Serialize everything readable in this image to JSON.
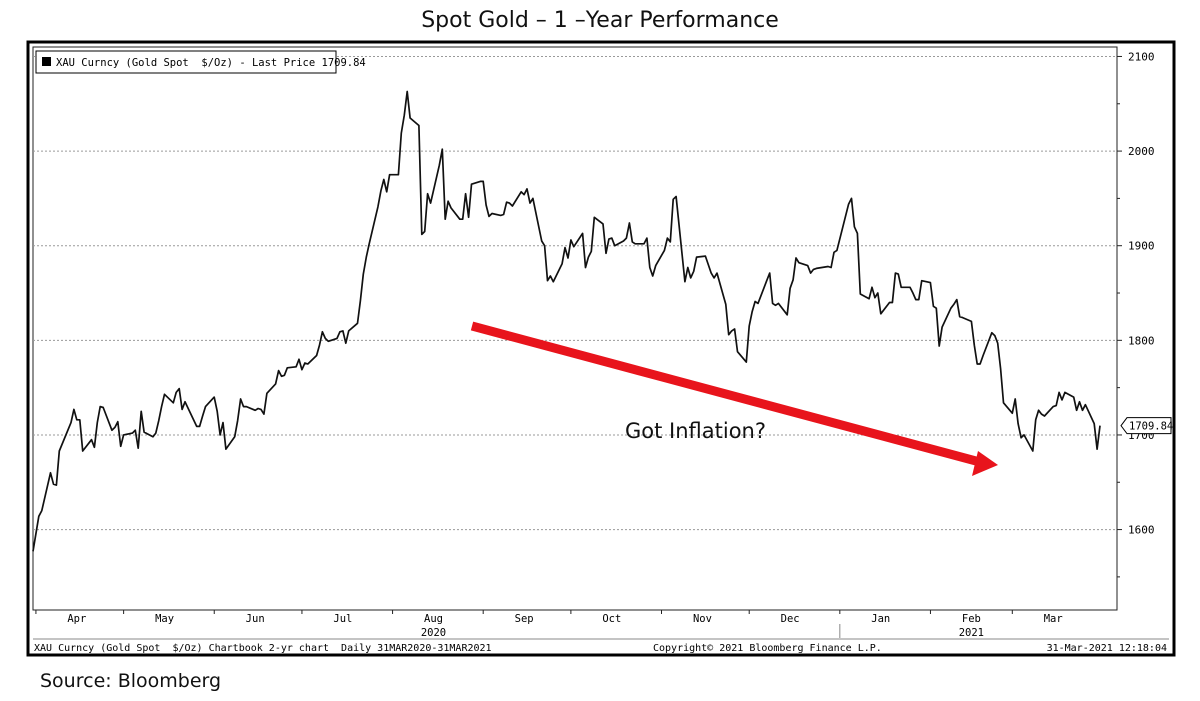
{
  "title": "Spot Gold – 1 –Year Performance",
  "source": "Source: Bloomberg",
  "footer": {
    "left": "XAU Curncy (Gold Spot  $/Oz) Chartbook 2-yr chart  Daily 31MAR2020-31MAR2021",
    "center": "Copyright© 2021 Bloomberg Finance L.P.",
    "right": "31-Mar-2021 12:18:04"
  },
  "annotation": {
    "text": "Got Inflation?",
    "arrow_color": "#e8141c"
  },
  "chart_data": {
    "type": "line",
    "legend": {
      "label": "XAU Curncy (Gold Spot  $/Oz) - Last Price 1709.84",
      "position": "top-left"
    },
    "last_price_label": "1709.84",
    "last_price": 1709.84,
    "ylim": [
      1515,
      2110
    ],
    "y_ticks": [
      1600,
      1700,
      1800,
      1900,
      2000,
      2100
    ],
    "y_axis_side": "right",
    "grid": "horizontal dotted",
    "x_range": [
      "2020-03-31",
      "2021-03-31"
    ],
    "x_ticks": [
      {
        "date": "2020-04-15",
        "label": "Apr"
      },
      {
        "date": "2020-05-15",
        "label": "May"
      },
      {
        "date": "2020-06-15",
        "label": "Jun"
      },
      {
        "date": "2020-07-15",
        "label": "Jul"
      },
      {
        "date": "2020-08-15",
        "label": "Aug",
        "year": "2020"
      },
      {
        "date": "2020-09-15",
        "label": "Sep"
      },
      {
        "date": "2020-10-15",
        "label": "Oct"
      },
      {
        "date": "2020-11-15",
        "label": "Nov"
      },
      {
        "date": "2020-12-15",
        "label": "Dec"
      },
      {
        "date": "2021-01-15",
        "label": "Jan"
      },
      {
        "date": "2021-02-15",
        "label": "Feb",
        "year": "2021"
      },
      {
        "date": "2021-03-15",
        "label": "Mar"
      }
    ],
    "line_color": "#111111",
    "series": [
      {
        "name": "XAU Curncy (Gold Spot  $/Oz) - Last Price",
        "points": [
          [
            "2020-03-31",
            1577
          ],
          [
            "2020-04-02",
            1614
          ],
          [
            "2020-04-03",
            1620
          ],
          [
            "2020-04-06",
            1660
          ],
          [
            "2020-04-07",
            1648
          ],
          [
            "2020-04-08",
            1647
          ],
          [
            "2020-04-09",
            1683
          ],
          [
            "2020-04-13",
            1713
          ],
          [
            "2020-04-14",
            1727
          ],
          [
            "2020-04-15",
            1716
          ],
          [
            "2020-04-16",
            1716
          ],
          [
            "2020-04-17",
            1683
          ],
          [
            "2020-04-20",
            1695
          ],
          [
            "2020-04-21",
            1687
          ],
          [
            "2020-04-22",
            1713
          ],
          [
            "2020-04-23",
            1730
          ],
          [
            "2020-04-24",
            1729
          ],
          [
            "2020-04-27",
            1705
          ],
          [
            "2020-04-28",
            1708
          ],
          [
            "2020-04-29",
            1714
          ],
          [
            "2020-04-30",
            1688
          ],
          [
            "2020-05-01",
            1700
          ],
          [
            "2020-05-04",
            1702
          ],
          [
            "2020-05-05",
            1705
          ],
          [
            "2020-05-06",
            1686
          ],
          [
            "2020-05-07",
            1725
          ],
          [
            "2020-05-08",
            1703
          ],
          [
            "2020-05-11",
            1698
          ],
          [
            "2020-05-12",
            1702
          ],
          [
            "2020-05-13",
            1715
          ],
          [
            "2020-05-14",
            1730
          ],
          [
            "2020-05-15",
            1743
          ],
          [
            "2020-05-18",
            1734
          ],
          [
            "2020-05-19",
            1745
          ],
          [
            "2020-05-20",
            1749
          ],
          [
            "2020-05-21",
            1727
          ],
          [
            "2020-05-22",
            1735
          ],
          [
            "2020-05-26",
            1709
          ],
          [
            "2020-05-27",
            1709
          ],
          [
            "2020-05-28",
            1720
          ],
          [
            "2020-05-29",
            1730
          ],
          [
            "2020-06-01",
            1740
          ],
          [
            "2020-06-02",
            1725
          ],
          [
            "2020-06-03",
            1700
          ],
          [
            "2020-06-04",
            1713
          ],
          [
            "2020-06-05",
            1685
          ],
          [
            "2020-06-08",
            1698
          ],
          [
            "2020-06-09",
            1715
          ],
          [
            "2020-06-10",
            1738
          ],
          [
            "2020-06-11",
            1730
          ],
          [
            "2020-06-12",
            1730
          ],
          [
            "2020-06-15",
            1726
          ],
          [
            "2020-06-16",
            1728
          ],
          [
            "2020-06-17",
            1727
          ],
          [
            "2020-06-18",
            1722
          ],
          [
            "2020-06-19",
            1744
          ],
          [
            "2020-06-22",
            1754
          ],
          [
            "2020-06-23",
            1768
          ],
          [
            "2020-06-24",
            1762
          ],
          [
            "2020-06-25",
            1763
          ],
          [
            "2020-06-26",
            1771
          ],
          [
            "2020-06-29",
            1772
          ],
          [
            "2020-06-30",
            1780
          ],
          [
            "2020-07-01",
            1769
          ],
          [
            "2020-07-02",
            1776
          ],
          [
            "2020-07-03",
            1775
          ],
          [
            "2020-07-06",
            1784
          ],
          [
            "2020-07-07",
            1795
          ],
          [
            "2020-07-08",
            1809
          ],
          [
            "2020-07-09",
            1802
          ],
          [
            "2020-07-10",
            1799
          ],
          [
            "2020-07-13",
            1802
          ],
          [
            "2020-07-14",
            1809
          ],
          [
            "2020-07-15",
            1810
          ],
          [
            "2020-07-16",
            1797
          ],
          [
            "2020-07-17",
            1810
          ],
          [
            "2020-07-20",
            1818
          ],
          [
            "2020-07-21",
            1842
          ],
          [
            "2020-07-22",
            1870
          ],
          [
            "2020-07-23",
            1888
          ],
          [
            "2020-07-24",
            1902
          ],
          [
            "2020-07-27",
            1941
          ],
          [
            "2020-07-28",
            1958
          ],
          [
            "2020-07-29",
            1970
          ],
          [
            "2020-07-30",
            1957
          ],
          [
            "2020-07-31",
            1975
          ],
          [
            "2020-08-03",
            1975
          ],
          [
            "2020-08-04",
            2019
          ],
          [
            "2020-08-05",
            2038
          ],
          [
            "2020-08-06",
            2063
          ],
          [
            "2020-08-07",
            2035
          ],
          [
            "2020-08-10",
            2027
          ],
          [
            "2020-08-11",
            1912
          ],
          [
            "2020-08-12",
            1915
          ],
          [
            "2020-08-13",
            1955
          ],
          [
            "2020-08-14",
            1945
          ],
          [
            "2020-08-17",
            1985
          ],
          [
            "2020-08-18",
            2002
          ],
          [
            "2020-08-19",
            1928
          ],
          [
            "2020-08-20",
            1947
          ],
          [
            "2020-08-21",
            1940
          ],
          [
            "2020-08-24",
            1928
          ],
          [
            "2020-08-25",
            1928
          ],
          [
            "2020-08-26",
            1955
          ],
          [
            "2020-08-27",
            1930
          ],
          [
            "2020-08-28",
            1965
          ],
          [
            "2020-08-31",
            1968
          ],
          [
            "2020-09-01",
            1968
          ],
          [
            "2020-09-02",
            1943
          ],
          [
            "2020-09-03",
            1931
          ],
          [
            "2020-09-04",
            1934
          ],
          [
            "2020-09-07",
            1932
          ],
          [
            "2020-09-08",
            1933
          ],
          [
            "2020-09-09",
            1946
          ],
          [
            "2020-09-10",
            1945
          ],
          [
            "2020-09-11",
            1942
          ],
          [
            "2020-09-14",
            1957
          ],
          [
            "2020-09-15",
            1954
          ],
          [
            "2020-09-16",
            1960
          ],
          [
            "2020-09-17",
            1945
          ],
          [
            "2020-09-18",
            1950
          ],
          [
            "2020-09-21",
            1905
          ],
          [
            "2020-09-22",
            1900
          ],
          [
            "2020-09-23",
            1863
          ],
          [
            "2020-09-24",
            1868
          ],
          [
            "2020-09-25",
            1862
          ],
          [
            "2020-09-28",
            1881
          ],
          [
            "2020-09-29",
            1898
          ],
          [
            "2020-09-30",
            1887
          ],
          [
            "2020-10-01",
            1906
          ],
          [
            "2020-10-02",
            1899
          ],
          [
            "2020-10-05",
            1913
          ],
          [
            "2020-10-06",
            1877
          ],
          [
            "2020-10-07",
            1888
          ],
          [
            "2020-10-08",
            1894
          ],
          [
            "2020-10-09",
            1930
          ],
          [
            "2020-10-12",
            1923
          ],
          [
            "2020-10-13",
            1892
          ],
          [
            "2020-10-14",
            1907
          ],
          [
            "2020-10-15",
            1908
          ],
          [
            "2020-10-16",
            1900
          ],
          [
            "2020-10-19",
            1905
          ],
          [
            "2020-10-20",
            1908
          ],
          [
            "2020-10-21",
            1924
          ],
          [
            "2020-10-22",
            1904
          ],
          [
            "2020-10-23",
            1902
          ],
          [
            "2020-10-26",
            1902
          ],
          [
            "2020-10-27",
            1908
          ],
          [
            "2020-10-28",
            1877
          ],
          [
            "2020-10-29",
            1868
          ],
          [
            "2020-10-30",
            1879
          ],
          [
            "2020-11-02",
            1895
          ],
          [
            "2020-11-03",
            1908
          ],
          [
            "2020-11-04",
            1904
          ],
          [
            "2020-11-05",
            1949
          ],
          [
            "2020-11-06",
            1952
          ],
          [
            "2020-11-09",
            1862
          ],
          [
            "2020-11-10",
            1877
          ],
          [
            "2020-11-11",
            1866
          ],
          [
            "2020-11-12",
            1873
          ],
          [
            "2020-11-13",
            1888
          ],
          [
            "2020-11-16",
            1889
          ],
          [
            "2020-11-17",
            1880
          ],
          [
            "2020-11-18",
            1871
          ],
          [
            "2020-11-19",
            1866
          ],
          [
            "2020-11-20",
            1871
          ],
          [
            "2020-11-23",
            1838
          ],
          [
            "2020-11-24",
            1806
          ],
          [
            "2020-11-25",
            1810
          ],
          [
            "2020-11-26",
            1812
          ],
          [
            "2020-11-27",
            1788
          ],
          [
            "2020-11-30",
            1777
          ],
          [
            "2020-12-01",
            1815
          ],
          [
            "2020-12-02",
            1830
          ],
          [
            "2020-12-03",
            1841
          ],
          [
            "2020-12-04",
            1839
          ],
          [
            "2020-12-07",
            1863
          ],
          [
            "2020-12-08",
            1871
          ],
          [
            "2020-12-09",
            1839
          ],
          [
            "2020-12-10",
            1837
          ],
          [
            "2020-12-11",
            1839
          ],
          [
            "2020-12-14",
            1827
          ],
          [
            "2020-12-15",
            1855
          ],
          [
            "2020-12-16",
            1864
          ],
          [
            "2020-12-17",
            1887
          ],
          [
            "2020-12-18",
            1882
          ],
          [
            "2020-12-21",
            1879
          ],
          [
            "2020-12-22",
            1871
          ],
          [
            "2020-12-23",
            1875
          ],
          [
            "2020-12-24",
            1876
          ],
          [
            "2020-12-28",
            1878
          ],
          [
            "2020-12-29",
            1877
          ],
          [
            "2020-12-30",
            1893
          ],
          [
            "2020-12-31",
            1895
          ],
          [
            "2021-01-04",
            1944
          ],
          [
            "2021-01-05",
            1950
          ],
          [
            "2021-01-06",
            1920
          ],
          [
            "2021-01-07",
            1913
          ],
          [
            "2021-01-08",
            1849
          ],
          [
            "2021-01-11",
            1844
          ],
          [
            "2021-01-12",
            1856
          ],
          [
            "2021-01-13",
            1845
          ],
          [
            "2021-01-14",
            1850
          ],
          [
            "2021-01-15",
            1828
          ],
          [
            "2021-01-18",
            1840
          ],
          [
            "2021-01-19",
            1840
          ],
          [
            "2021-01-20",
            1871
          ],
          [
            "2021-01-21",
            1870
          ],
          [
            "2021-01-22",
            1856
          ],
          [
            "2021-01-25",
            1856
          ],
          [
            "2021-01-26",
            1850
          ],
          [
            "2021-01-27",
            1843
          ],
          [
            "2021-01-28",
            1843
          ],
          [
            "2021-01-29",
            1863
          ],
          [
            "2021-02-01",
            1861
          ],
          [
            "2021-02-02",
            1836
          ],
          [
            "2021-02-03",
            1834
          ],
          [
            "2021-02-04",
            1794
          ],
          [
            "2021-02-05",
            1814
          ],
          [
            "2021-02-08",
            1834
          ],
          [
            "2021-02-09",
            1838
          ],
          [
            "2021-02-10",
            1843
          ],
          [
            "2021-02-11",
            1825
          ],
          [
            "2021-02-12",
            1824
          ],
          [
            "2021-02-15",
            1820
          ],
          [
            "2021-02-16",
            1795
          ],
          [
            "2021-02-17",
            1775
          ],
          [
            "2021-02-18",
            1775
          ],
          [
            "2021-02-19",
            1784
          ],
          [
            "2021-02-22",
            1808
          ],
          [
            "2021-02-23",
            1805
          ],
          [
            "2021-02-24",
            1797
          ],
          [
            "2021-02-25",
            1770
          ],
          [
            "2021-02-26",
            1734
          ],
          [
            "2021-03-01",
            1723
          ],
          [
            "2021-03-02",
            1738
          ],
          [
            "2021-03-03",
            1712
          ],
          [
            "2021-03-04",
            1697
          ],
          [
            "2021-03-05",
            1700
          ],
          [
            "2021-03-08",
            1683
          ],
          [
            "2021-03-09",
            1716
          ],
          [
            "2021-03-10",
            1726
          ],
          [
            "2021-03-11",
            1722
          ],
          [
            "2021-03-12",
            1720
          ],
          [
            "2021-03-15",
            1730
          ],
          [
            "2021-03-16",
            1731
          ],
          [
            "2021-03-17",
            1745
          ],
          [
            "2021-03-18",
            1737
          ],
          [
            "2021-03-19",
            1745
          ],
          [
            "2021-03-22",
            1740
          ],
          [
            "2021-03-23",
            1726
          ],
          [
            "2021-03-24",
            1735
          ],
          [
            "2021-03-25",
            1726
          ],
          [
            "2021-03-26",
            1732
          ],
          [
            "2021-03-29",
            1712
          ],
          [
            "2021-03-30",
            1685
          ],
          [
            "2021-03-31",
            1709.84
          ]
        ]
      }
    ]
  }
}
